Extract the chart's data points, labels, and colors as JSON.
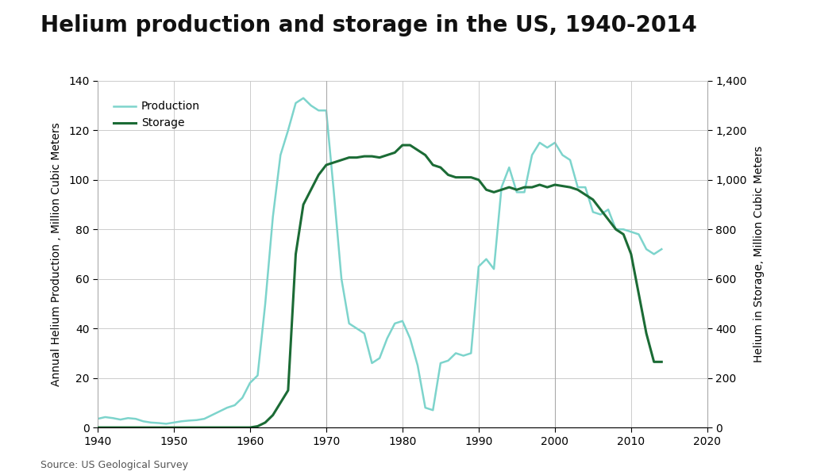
{
  "title": "Helium production and storage in the US, 1940-2014",
  "source": "Source: US Geological Survey",
  "production_data": {
    "years": [
      1940,
      1941,
      1942,
      1943,
      1944,
      1945,
      1946,
      1947,
      1948,
      1949,
      1950,
      1951,
      1952,
      1953,
      1954,
      1955,
      1956,
      1957,
      1958,
      1959,
      1960,
      1961,
      1962,
      1963,
      1964,
      1965,
      1966,
      1967,
      1968,
      1969,
      1970,
      1971,
      1972,
      1973,
      1974,
      1975,
      1976,
      1977,
      1978,
      1979,
      1980,
      1981,
      1982,
      1983,
      1984,
      1985,
      1986,
      1987,
      1988,
      1989,
      1990,
      1991,
      1992,
      1993,
      1994,
      1995,
      1996,
      1997,
      1998,
      1999,
      2000,
      2001,
      2002,
      2003,
      2004,
      2005,
      2006,
      2007,
      2008,
      2009,
      2010,
      2011,
      2012,
      2013,
      2014
    ],
    "values": [
      3.5,
      4.2,
      3.8,
      3.2,
      3.8,
      3.5,
      2.5,
      2.0,
      1.8,
      1.5,
      2.0,
      2.5,
      2.8,
      3.0,
      3.5,
      5.0,
      6.5,
      8.0,
      9.0,
      12.0,
      18.0,
      21.0,
      50.0,
      85.0,
      110.0,
      120.0,
      131.0,
      133.0,
      130.0,
      128.0,
      128.0,
      95.0,
      60.0,
      42.0,
      40.0,
      38.0,
      26.0,
      28.0,
      36.0,
      42.0,
      43.0,
      36.0,
      25.0,
      8.0,
      7.0,
      26.0,
      27.0,
      30.0,
      29.0,
      30.0,
      65.0,
      68.0,
      64.0,
      97.0,
      105.0,
      95.0,
      95.0,
      110.0,
      115.0,
      113.0,
      115.0,
      110.0,
      108.0,
      97.0,
      97.0,
      87.0,
      86.0,
      88.0,
      80.0,
      80.0,
      79.0,
      78.0,
      72.0,
      70.0,
      72.0
    ]
  },
  "storage_data": {
    "years": [
      1940,
      1941,
      1942,
      1943,
      1944,
      1945,
      1946,
      1947,
      1948,
      1949,
      1950,
      1951,
      1952,
      1953,
      1954,
      1955,
      1956,
      1957,
      1958,
      1959,
      1960,
      1961,
      1962,
      1963,
      1964,
      1965,
      1966,
      1967,
      1968,
      1969,
      1970,
      1971,
      1972,
      1973,
      1974,
      1975,
      1976,
      1977,
      1978,
      1979,
      1980,
      1981,
      1982,
      1983,
      1984,
      1985,
      1986,
      1987,
      1988,
      1989,
      1990,
      1991,
      1992,
      1993,
      1994,
      1995,
      1996,
      1997,
      1998,
      1999,
      2000,
      2001,
      2002,
      2003,
      2004,
      2005,
      2006,
      2007,
      2008,
      2009,
      2010,
      2011,
      2012,
      2013,
      2014
    ],
    "values": [
      0,
      0,
      0,
      0,
      0,
      0,
      0,
      0,
      0,
      0,
      0,
      0,
      0,
      0,
      0,
      0,
      0,
      0,
      0,
      0,
      0,
      5,
      20,
      50,
      100,
      150,
      700,
      900,
      960,
      1020,
      1060,
      1070,
      1080,
      1090,
      1090,
      1095,
      1095,
      1090,
      1100,
      1110,
      1140,
      1140,
      1120,
      1100,
      1060,
      1050,
      1020,
      1010,
      1010,
      1010,
      1000,
      960,
      950,
      960,
      970,
      960,
      970,
      970,
      980,
      970,
      980,
      975,
      970,
      960,
      940,
      920,
      880,
      840,
      800,
      780,
      700,
      540,
      380,
      265,
      265
    ]
  },
  "production_color": "#7DD4CC",
  "storage_color": "#1B6B35",
  "left_ylim": [
    0,
    140
  ],
  "right_ylim": [
    0,
    1400
  ],
  "left_yticks": [
    0,
    20,
    40,
    60,
    80,
    100,
    120,
    140
  ],
  "right_yticks": [
    0,
    200,
    400,
    600,
    800,
    1000,
    1200,
    1400
  ],
  "xlim": [
    1940,
    2020
  ],
  "xticks": [
    1940,
    1950,
    1960,
    1970,
    1980,
    1990,
    2000,
    2010,
    2020
  ],
  "ylabel_left": "Annual Helium Production , Million Cubic Meters",
  "ylabel_right": "Helium in Storage, Million Cubic Meters",
  "legend_labels": [
    "Production",
    "Storage"
  ],
  "title_fontsize": 20,
  "label_fontsize": 10,
  "tick_fontsize": 10,
  "legend_fontsize": 10,
  "grid_color": "#cccccc",
  "background_color": "#ffffff",
  "vertical_lines": [
    1970,
    2000
  ]
}
